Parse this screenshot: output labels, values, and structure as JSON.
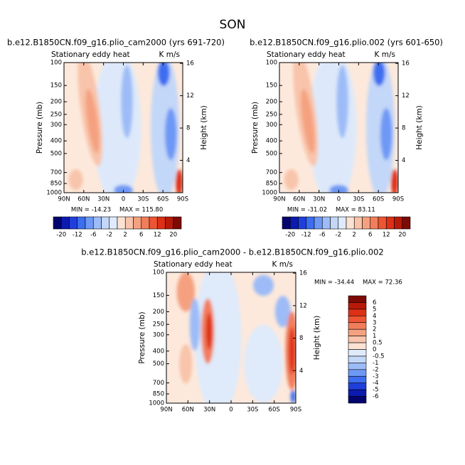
{
  "chart_data": [
    {
      "type": "contour",
      "title": "SON",
      "subtitle": "b.e12.B1850CN.f09_g16.plio_cam2000 (yrs 691-720)",
      "left_label": "Stationary eddy heat",
      "right_label": "K m/s",
      "y_label": "Pressure (mb)",
      "y2_label": "Height (km)",
      "min_label": "MIN = -14.23",
      "max_label": "MAX = 115.80",
      "xlim": [
        90,
        -90
      ],
      "xticks": [
        {
          "value": 90,
          "label": "90N"
        },
        {
          "value": 60,
          "label": "60N"
        },
        {
          "value": 30,
          "label": "30N"
        },
        0,
        {
          "value": -30,
          "label": "30S"
        },
        {
          "value": -60,
          "label": "60S"
        },
        {
          "value": -90,
          "label": "90S"
        }
      ],
      "ylim": [
        1000,
        100
      ],
      "log_y": true,
      "yticks": [
        100,
        150,
        200,
        250,
        300,
        400,
        500,
        700,
        850,
        1000
      ],
      "y2lim": [
        0,
        16.1
      ],
      "y2ticks": [
        4,
        8,
        12,
        16
      ],
      "colorbar": {
        "orientation": "horizontal",
        "labels": [
          -20,
          -12,
          -6,
          -2,
          2,
          6,
          12,
          20
        ],
        "colors": [
          "#03046e",
          "#0b1bb0",
          "#1f3fdc",
          "#3d6ef0",
          "#6e98f5",
          "#9dbcf7",
          "#c3d7f8",
          "#dfeafa",
          "#fbe3d3",
          "#f8c4ab",
          "#f5a180",
          "#f27d5b",
          "#ee5533",
          "#dd3016",
          "#b81a0a",
          "#7e0a06"
        ]
      }
    },
    {
      "type": "contour",
      "subtitle": "b.e12.B1850CN.f09_g16.plio.002 (yrs 601-650)",
      "left_label": "Stationary eddy heat",
      "right_label": "K m/s",
      "y_label": "Pressure (mb)",
      "y2_label": "Height (km)",
      "min_label": "MIN = -31.02",
      "max_label": "MAX = 83.11",
      "xlim": [
        90,
        -90
      ],
      "xticks": [
        {
          "value": 90,
          "label": "90N"
        },
        {
          "value": 60,
          "label": "60N"
        },
        {
          "value": 30,
          "label": "30N"
        },
        0,
        {
          "value": -30,
          "label": "30S"
        },
        {
          "value": -60,
          "label": "60S"
        },
        {
          "value": -90,
          "label": "90S"
        }
      ],
      "ylim": [
        1000,
        100
      ],
      "log_y": true,
      "yticks": [
        100,
        150,
        200,
        250,
        300,
        400,
        500,
        700,
        850,
        1000
      ],
      "y2lim": [
        0,
        16.1
      ],
      "y2ticks": [
        4,
        8,
        12,
        16
      ],
      "colorbar": {
        "orientation": "horizontal",
        "labels": [
          -20,
          -12,
          -6,
          -2,
          2,
          6,
          12,
          20
        ],
        "colors": [
          "#03046e",
          "#0b1bb0",
          "#1f3fdc",
          "#3d6ef0",
          "#6e98f5",
          "#9dbcf7",
          "#c3d7f8",
          "#dfeafa",
          "#fbe3d3",
          "#f8c4ab",
          "#f5a180",
          "#f27d5b",
          "#ee5533",
          "#dd3016",
          "#b81a0a",
          "#7e0a06"
        ]
      }
    },
    {
      "type": "contour",
      "subtitle": "b.e12.B1850CN.f09_g16.plio_cam2000 - b.e12.B1850CN.f09_g16.plio.002",
      "left_label": "Stationary eddy heat",
      "right_label": "K m/s",
      "y_label": "Pressure (mb)",
      "y2_label": "Height (km)",
      "min_label": "MIN = -34.44",
      "max_label": "MAX = 72.36",
      "xlim": [
        90,
        -90
      ],
      "xticks": [
        {
          "value": 90,
          "label": "90N"
        },
        {
          "value": 60,
          "label": "60N"
        },
        {
          "value": 30,
          "label": "30N"
        },
        0,
        {
          "value": -30,
          "label": "30S"
        },
        {
          "value": -60,
          "label": "60S"
        },
        {
          "value": -90,
          "label": "90S"
        }
      ],
      "ylim": [
        1000,
        100
      ],
      "log_y": true,
      "yticks": [
        100,
        150,
        200,
        250,
        300,
        400,
        500,
        700,
        850,
        1000
      ],
      "y2lim": [
        0,
        16.1
      ],
      "y2ticks": [
        4,
        8,
        12,
        16
      ],
      "colorbar": {
        "orientation": "vertical",
        "labels": [
          6,
          5,
          4,
          3,
          2,
          1,
          0.5,
          0,
          -0.5,
          -1,
          -2,
          -3,
          -4,
          -5,
          -6
        ],
        "colors": [
          "#7e0a06",
          "#b81a0a",
          "#dd3016",
          "#ee5533",
          "#f27d5b",
          "#f5a180",
          "#f8c4ab",
          "#fbe3d3",
          "#dfeafa",
          "#c3d7f8",
          "#9dbcf7",
          "#6e98f5",
          "#3d6ef0",
          "#1f3fdc",
          "#0b1bb0",
          "#03046e"
        ]
      }
    }
  ]
}
